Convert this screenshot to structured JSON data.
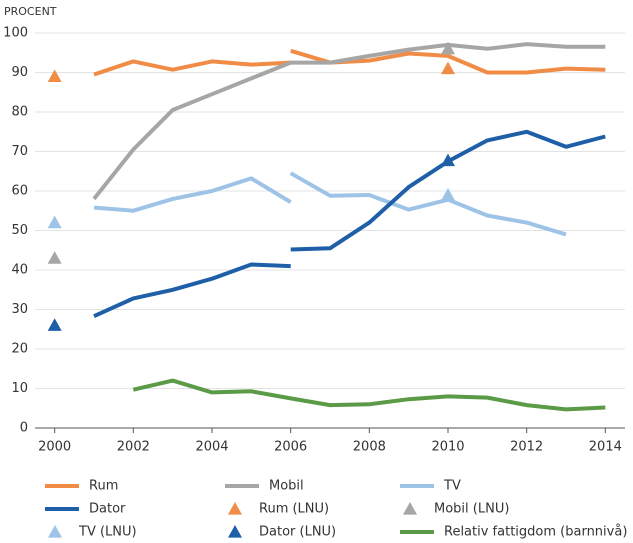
{
  "chart_data": {
    "type": "line",
    "ylabel": "PROCENT",
    "xlim": [
      1999.5,
      2014.5
    ],
    "xticks": [
      2000,
      2002,
      2004,
      2006,
      2008,
      2010,
      2012,
      2014
    ],
    "ylim": [
      0,
      100
    ],
    "yticks": [
      0,
      10,
      20,
      30,
      40,
      50,
      60,
      70,
      80,
      90,
      100
    ],
    "grid": true,
    "series": [
      {
        "name": "Rum",
        "color": "#f08c46",
        "x": [
          2001,
          2002,
          2003,
          2004,
          2005,
          2006,
          null,
          2006,
          2007,
          2008,
          2009,
          2010,
          2011,
          2012,
          2013,
          2014
        ],
        "values": [
          89.5,
          92.8,
          90.7,
          92.8,
          92,
          92.5,
          null,
          95.5,
          92.5,
          93,
          94.8,
          94.2,
          90,
          90,
          91,
          90.7
        ]
      },
      {
        "name": "Mobil",
        "color": "#a6a6a6",
        "x": [
          2001,
          2002,
          2003,
          2004,
          2005,
          2006,
          2007,
          2008,
          2009,
          2010,
          2011,
          2012,
          2013,
          2014
        ],
        "values": [
          58,
          70.5,
          80.5,
          84.5,
          88.5,
          92.5,
          92.5,
          94.2,
          95.8,
          97,
          96,
          97.2,
          96.5,
          96.5
        ]
      },
      {
        "name": "TV",
        "color": "#9dc3e6",
        "x": [
          2001,
          2002,
          2003,
          2004,
          2005,
          2006,
          null,
          2006,
          2007,
          2008,
          2009,
          2010,
          2011,
          2012,
          2013
        ],
        "values": [
          55.8,
          55,
          58,
          60,
          63.2,
          57.2,
          null,
          64.5,
          58.8,
          59,
          55.3,
          57.8,
          53.8,
          52,
          49
        ]
      },
      {
        "name": "Dator",
        "color": "#1f5fa8",
        "x": [
          2001,
          2002,
          2003,
          2004,
          2005,
          2006,
          null,
          2006,
          2007,
          2008,
          2009,
          2010,
          2011,
          2012,
          2013,
          2014
        ],
        "values": [
          28.3,
          32.8,
          35,
          37.8,
          41.4,
          41,
          null,
          45.2,
          45.5,
          52,
          61,
          67.5,
          72.8,
          75,
          71.2,
          73.8
        ]
      },
      {
        "name": "Rum (LNU)",
        "color": "#f08c46",
        "marker": "triangle",
        "x": [
          2000,
          2010
        ],
        "values": [
          89,
          91
        ]
      },
      {
        "name": "Mobil (LNU)",
        "color": "#a6a6a6",
        "marker": "triangle",
        "x": [
          2000,
          2010
        ],
        "values": [
          43,
          96
        ]
      },
      {
        "name": "TV (LNU)",
        "color": "#9dc3e6",
        "marker": "triangle",
        "x": [
          2000,
          2010
        ],
        "values": [
          52,
          59
        ]
      },
      {
        "name": "Dator (LNU)",
        "color": "#1f5fa8",
        "marker": "triangle",
        "x": [
          2000,
          2010
        ],
        "values": [
          26,
          67.7
        ]
      },
      {
        "name": "Relativ fattigdom (barnnivå)",
        "color": "#5b9a46",
        "x": [
          2002,
          2003,
          2004,
          2005,
          2006,
          2007,
          2008,
          2009,
          2010,
          2011,
          2012,
          2013,
          2014
        ],
        "values": [
          9.7,
          12,
          9,
          9.3,
          7.5,
          5.8,
          6,
          7.3,
          8,
          7.7,
          5.8,
          4.7,
          5.2
        ]
      }
    ]
  }
}
